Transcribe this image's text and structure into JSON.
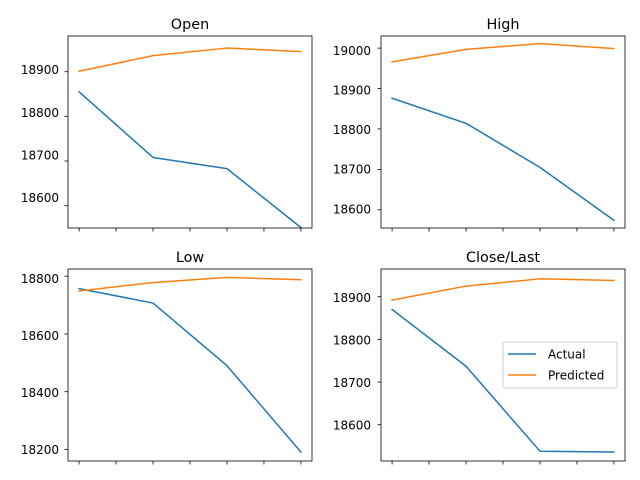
{
  "colors": {
    "actual": "#1f77b4",
    "predicted": "#ff7f0e",
    "axis": "#000000",
    "legend_border": "#cccccc"
  },
  "chart_data": [
    {
      "type": "line",
      "title": "Open",
      "x": [
        0,
        1,
        2,
        3
      ],
      "xlim": [
        -0.15,
        3.15
      ],
      "x_minor_ticks": [
        0,
        0.5,
        1,
        1.5,
        2,
        2.5,
        3
      ],
      "x_tick_labels_hidden": true,
      "ylim": [
        18550,
        18980
      ],
      "yticks": [
        18600,
        18700,
        18800,
        18900
      ],
      "ytick_labels": [
        "18600",
        "18700",
        "18800",
        "18900"
      ],
      "grid": false,
      "series": [
        {
          "key": "actual",
          "values": [
            18855,
            18708,
            18683,
            18551
          ]
        },
        {
          "key": "predicted",
          "values": [
            18901,
            18936,
            18953,
            18945
          ]
        }
      ]
    },
    {
      "type": "line",
      "title": "High",
      "x": [
        0,
        1,
        2,
        3
      ],
      "xlim": [
        -0.15,
        3.15
      ],
      "x_minor_ticks": [
        0,
        0.5,
        1,
        1.5,
        2,
        2.5,
        3
      ],
      "x_tick_labels_hidden": true,
      "ylim": [
        18555,
        19030
      ],
      "yticks": [
        18600,
        18700,
        18800,
        18900,
        19000
      ],
      "ytick_labels": [
        "18600",
        "18700",
        "18800",
        "18900",
        "19000"
      ],
      "grid": false,
      "series": [
        {
          "key": "actual",
          "values": [
            18876,
            18814,
            18705,
            18574
          ]
        },
        {
          "key": "predicted",
          "values": [
            18966,
            18997,
            19011,
            18999
          ]
        }
      ]
    },
    {
      "type": "line",
      "title": "Low",
      "x": [
        0,
        1,
        2,
        3
      ],
      "xlim": [
        -0.15,
        3.15
      ],
      "x_minor_ticks": [
        0,
        0.5,
        1,
        1.5,
        2,
        2.5,
        3
      ],
      "x_tick_labels_hidden": true,
      "ylim": [
        18160,
        18825
      ],
      "yticks": [
        18200,
        18400,
        18600,
        18800
      ],
      "ytick_labels": [
        "18200",
        "18400",
        "18600",
        "18800"
      ],
      "grid": false,
      "series": [
        {
          "key": "actual",
          "values": [
            18757,
            18707,
            18490,
            18191
          ]
        },
        {
          "key": "predicted",
          "values": [
            18749,
            18778,
            18796,
            18788
          ]
        }
      ]
    },
    {
      "type": "line",
      "title": "Close/Last",
      "x": [
        0,
        1,
        2,
        3
      ],
      "xlim": [
        -0.15,
        3.15
      ],
      "x_minor_ticks": [
        0,
        0.5,
        1,
        1.5,
        2,
        2.5,
        3
      ],
      "x_tick_labels_hidden": true,
      "ylim": [
        18515,
        18965
      ],
      "yticks": [
        18600,
        18700,
        18800,
        18900
      ],
      "ytick_labels": [
        "18600",
        "18700",
        "18800",
        "18900"
      ],
      "grid": false,
      "legend": {
        "placement": "center-right",
        "entries": [
          {
            "key": "actual",
            "label": "Actual"
          },
          {
            "key": "predicted",
            "label": "Predicted"
          }
        ]
      },
      "series": [
        {
          "key": "actual",
          "name": "Actual",
          "values": [
            18870,
            18737,
            18538,
            18536
          ]
        },
        {
          "key": "predicted",
          "name": "Predicted",
          "values": [
            18892,
            18925,
            18942,
            18938
          ]
        }
      ]
    }
  ]
}
